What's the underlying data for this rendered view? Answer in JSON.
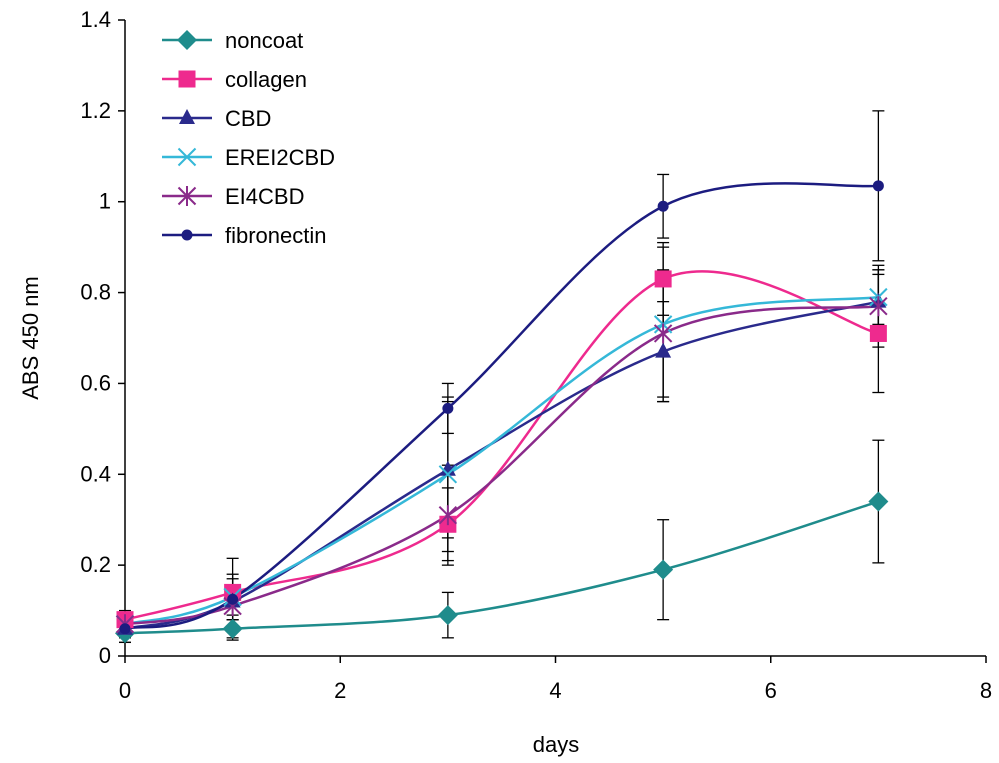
{
  "chart_data": {
    "type": "line",
    "xlabel": "days",
    "ylabel": "ABS 450 nm",
    "xlim": [
      0,
      8
    ],
    "ylim": [
      0,
      1.4
    ],
    "xticks": [
      "0",
      "2",
      "4",
      "6",
      "8"
    ],
    "yticks": [
      "0",
      "0.2",
      "0.4",
      "0.6",
      "0.8",
      "1",
      "1.2",
      "1.4"
    ],
    "grid": false,
    "legend_position": "top-left",
    "x": [
      0,
      1,
      3,
      5,
      7
    ],
    "series": [
      {
        "name": "noncoat",
        "color": "#1f8c8c",
        "marker": "diamond",
        "values": [
          0.05,
          0.06,
          0.09,
          0.19,
          0.34
        ],
        "err": [
          0.02,
          0.02,
          0.05,
          0.11,
          0.135
        ]
      },
      {
        "name": "collagen",
        "color": "#ee2a8e",
        "marker": "square",
        "values": [
          0.08,
          0.14,
          0.29,
          0.83,
          0.71
        ],
        "err": [
          0.02,
          0.03,
          0.08,
          0.08,
          0.13
        ]
      },
      {
        "name": "CBD",
        "color": "#2a2a8c",
        "marker": "triangle",
        "values": [
          0.06,
          0.12,
          0.41,
          0.67,
          0.78
        ],
        "err": [
          0.02,
          0.03,
          0.15,
          0.11,
          0.07
        ]
      },
      {
        "name": "EREI2CBD",
        "color": "#35b8d8",
        "marker": "x",
        "values": [
          0.07,
          0.13,
          0.4,
          0.73,
          0.79
        ],
        "err": [
          0.02,
          0.05,
          0.17,
          0.17,
          0.06
        ]
      },
      {
        "name": "EI4CBD",
        "color": "#8a2a8a",
        "marker": "asterisk",
        "values": [
          0.07,
          0.11,
          0.31,
          0.71,
          0.77
        ],
        "err": [
          0.02,
          0.03,
          0.11,
          0.14,
          0.09
        ]
      },
      {
        "name": "fibronectin",
        "color": "#1c1c80",
        "marker": "circle",
        "values": [
          0.06,
          0.125,
          0.545,
          0.99,
          1.035
        ],
        "err": [
          0.03,
          0.09,
          0.055,
          0.07,
          0.165
        ]
      }
    ]
  }
}
